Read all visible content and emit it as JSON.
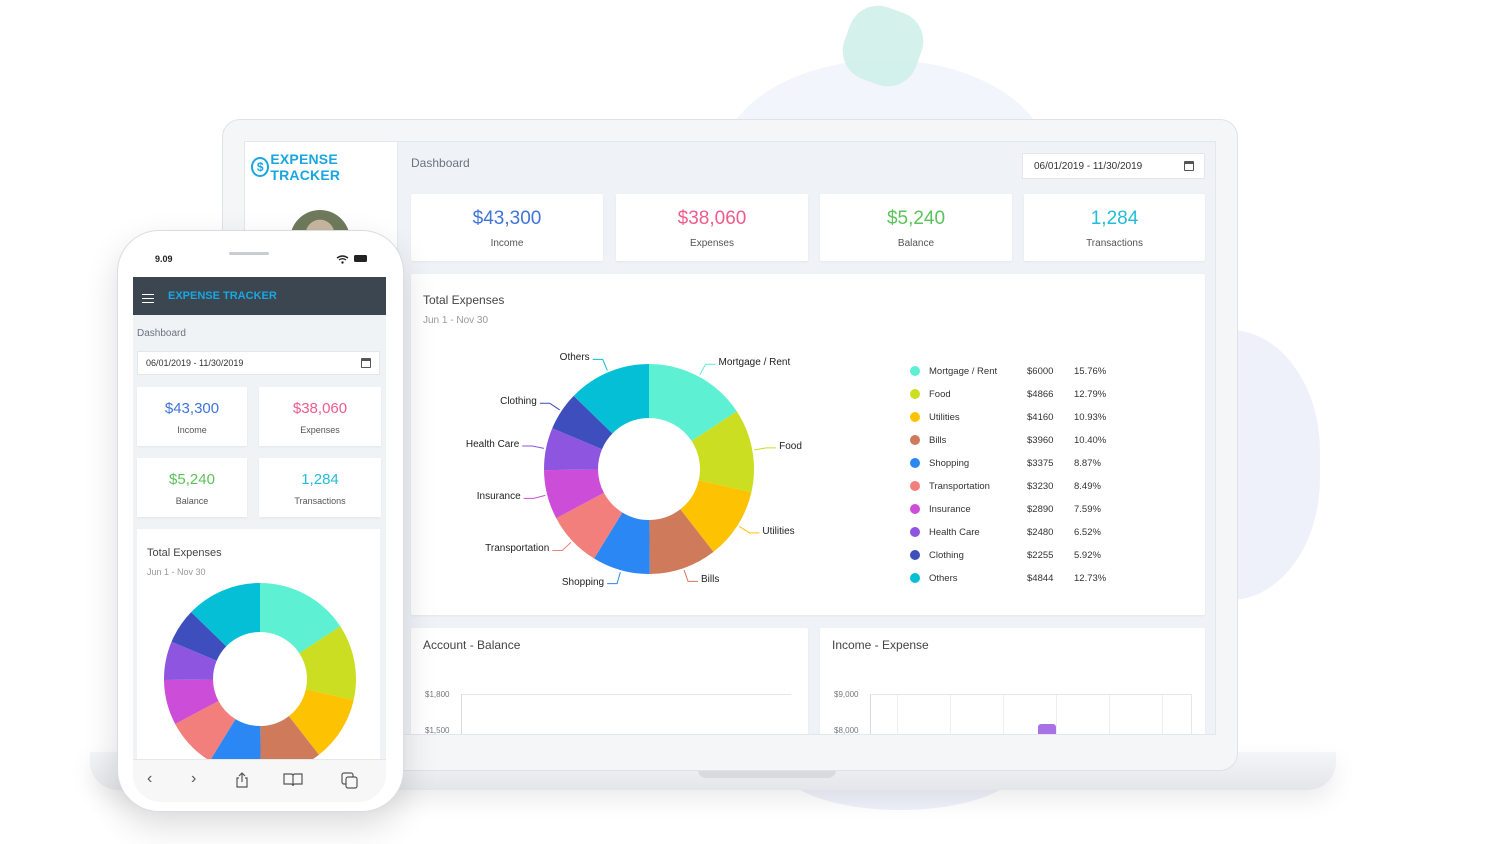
{
  "brand": {
    "name": "EXPENSE TRACKER",
    "logo_letter": "$"
  },
  "page_title": "Dashboard",
  "date_range": "06/01/2019 - 11/30/2019",
  "colors": {
    "brand": "#1aa6e0",
    "toolbar": "#3b4651"
  },
  "kpis": [
    {
      "value": "$43,300",
      "label": "Income",
      "color": "#3f74d8"
    },
    {
      "value": "$38,060",
      "label": "Expenses",
      "color": "#ef5b8a"
    },
    {
      "value": "$5,240",
      "label": "Balance",
      "color": "#5cc25a"
    },
    {
      "value": "1,284",
      "label": "Transactions",
      "color": "#22bdd8"
    }
  ],
  "total_expenses": {
    "title": "Total Expenses",
    "subtitle": "Jun 1 - Nov 30"
  },
  "chart_data": {
    "type": "pie",
    "title": "Total Expenses",
    "subtitle": "Jun 1 - Nov 30",
    "donut": true,
    "legend": "right",
    "categories": [
      "Mortgage / Rent",
      "Food",
      "Utilities",
      "Bills",
      "Shopping",
      "Transportation",
      "Insurance",
      "Health Care",
      "Clothing",
      "Others"
    ],
    "amounts": [
      "$6000",
      "$4866",
      "$4160",
      "$3960",
      "$3375",
      "$3230",
      "$2890",
      "$2480",
      "$2255",
      "$4844"
    ],
    "values": [
      6000,
      4866,
      4160,
      3960,
      3375,
      3230,
      2890,
      2480,
      2255,
      4844
    ],
    "percents": [
      "15.76%",
      "12.79%",
      "10.93%",
      "10.40%",
      "8.87%",
      "8.49%",
      "7.59%",
      "6.52%",
      "5.92%",
      "12.73%"
    ],
    "colors": [
      "#5ef0d2",
      "#cbde21",
      "#fdc302",
      "#d07a5c",
      "#2b87f4",
      "#f27f7b",
      "#cc4ed8",
      "#8e55e0",
      "#3e4fbd",
      "#05bfd6"
    ]
  },
  "account_balance": {
    "title": "Account - Balance",
    "ticks": [
      "$1,800",
      "$1,500"
    ]
  },
  "income_expense": {
    "title": "Income - Expense",
    "ticks": [
      "$9,000",
      "$8,000"
    ]
  },
  "phone": {
    "time": "9.09"
  }
}
